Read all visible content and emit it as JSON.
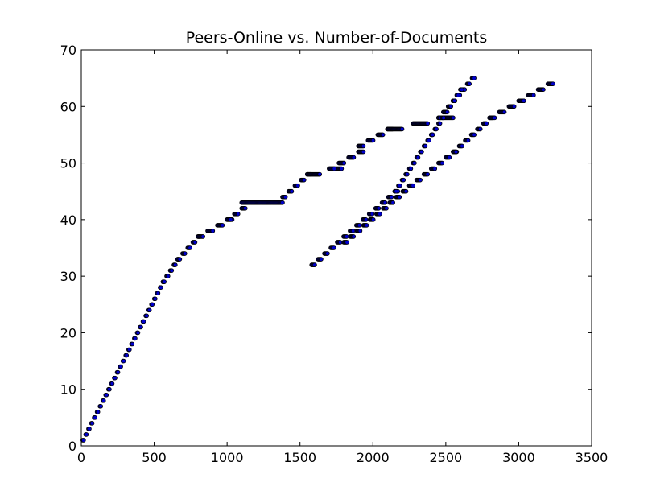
{
  "chart_data": {
    "type": "scatter",
    "title": "Peers-Online vs. Number-of-Documents",
    "xlabel": "",
    "ylabel": "",
    "xlim": [
      0,
      3500
    ],
    "ylim": [
      0,
      70
    ],
    "x_ticks": [
      0,
      500,
      1000,
      1500,
      2000,
      2500,
      3000,
      3500
    ],
    "y_ticks": [
      0,
      10,
      20,
      30,
      40,
      50,
      60,
      70
    ],
    "grid": false,
    "legend": "none",
    "marker_color": "#0000cc",
    "marker_edge": "#000000",
    "series": [
      {
        "segments": [
          {
            "from": [
              10,
              1
            ],
            "to": [
              560,
              29
            ],
            "step": 1
          },
          {
            "from": [
              560,
              29
            ],
            "to": [
              660,
              33
            ],
            "step": 1
          },
          {
            "from": [
              660,
              33
            ],
            "to": [
              800,
              37
            ],
            "step": 1
          },
          {
            "from": [
              800,
              37
            ],
            "to": [
              1000,
              40
            ],
            "step": 1
          },
          {
            "from": [
              1000,
              40
            ],
            "to": [
              1100,
              42
            ],
            "step": 1
          },
          {
            "from": [
              1100,
              43
            ],
            "to": [
              1380,
              43
            ],
            "step": 0
          },
          {
            "from": [
              1380,
              44
            ],
            "to": [
              1550,
              48
            ],
            "step": 1
          },
          {
            "from": [
              1550,
              48
            ],
            "to": [
              1700,
              49
            ],
            "step": 1
          },
          {
            "from": [
              1700,
              49
            ],
            "to": [
              1900,
              52
            ],
            "step": 1
          },
          {
            "from": [
              1900,
              53
            ],
            "to": [
              2100,
              56
            ],
            "step": 1
          },
          {
            "from": [
              2100,
              56
            ],
            "to": [
              2450,
              58
            ],
            "step": 1
          },
          {
            "from": [
              2450,
              58
            ],
            "to": [
              2680,
              65
            ],
            "step": 1
          },
          {
            "from": [
              1580,
              32
            ],
            "to": [
              2150,
              45
            ],
            "step": 1
          },
          {
            "from": [
              2150,
              45
            ],
            "to": [
              2400,
              55
            ],
            "step": 1
          },
          {
            "from": [
              2400,
              55
            ],
            "to": [
              2600,
              63
            ],
            "step": 1
          },
          {
            "from": [
              1800,
              36
            ],
            "to": [
              2250,
              46
            ],
            "step": 1
          },
          {
            "from": [
              2250,
              46
            ],
            "to": [
              2550,
              52
            ],
            "step": 1
          },
          {
            "from": [
              2550,
              52
            ],
            "to": [
              2800,
              58
            ],
            "step": 1
          },
          {
            "from": [
              2800,
              58
            ],
            "to": [
              3000,
              61
            ],
            "step": 1
          },
          {
            "from": [
              3000,
              61
            ],
            "to": [
              3200,
              64
            ],
            "step": 1
          }
        ]
      }
    ]
  }
}
